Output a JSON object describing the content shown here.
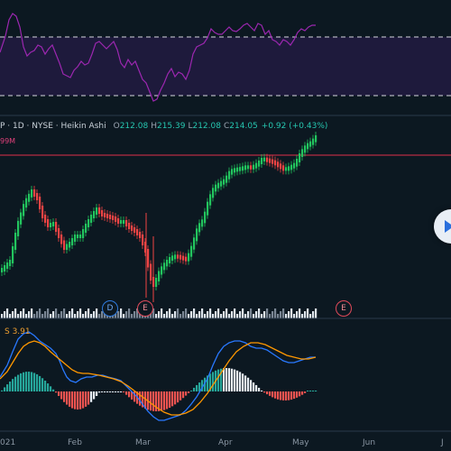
{
  "symbol_bar": {
    "title": "P · 1D · NYSE · Heikin Ashi",
    "o_key": "O",
    "o_val": "212.08",
    "h_key": "H",
    "h_val": "215.39",
    "l_key": "L",
    "l_val": "212.08",
    "c_key": "C",
    "c_val": "214.05",
    "change": "+0.92 (+0.43%)"
  },
  "price_level_label": "99M",
  "macd_label": "S 3.91",
  "event_markers": [
    {
      "id": "dividend",
      "label": "D"
    },
    {
      "id": "earnings-1",
      "label": "E"
    },
    {
      "id": "earnings-2",
      "label": "E"
    }
  ],
  "x_axis_labels": [
    "021",
    "Feb",
    "Mar",
    "Apr",
    "May",
    "Jun",
    "J"
  ],
  "colors": {
    "background": "#0c1821",
    "up": "#22c55e",
    "down": "#ef4444",
    "rsi_line": "#9c27b0",
    "macd_line": "#2979ff",
    "signal_line": "#ff9800",
    "hist_up": "#26a69a",
    "hist_down": "#ef5350",
    "price_line": "#e0304a"
  },
  "icons": {
    "scroll": "scroll-right-icon"
  },
  "chart_data": {
    "type": "candlestick",
    "style": "Heikin Ashi",
    "interval": "1D",
    "exchange": "NYSE",
    "ohlc_latest": {
      "open": 212.08,
      "high": 215.39,
      "low": 212.08,
      "close": 214.05,
      "change": 0.92,
      "change_pct": 0.43
    },
    "indicators": [
      "RSI",
      "Volume",
      "MACD"
    ],
    "x_labels": [
      "021",
      "Feb",
      "Mar",
      "Apr",
      "May",
      "Jun",
      "J"
    ]
  }
}
